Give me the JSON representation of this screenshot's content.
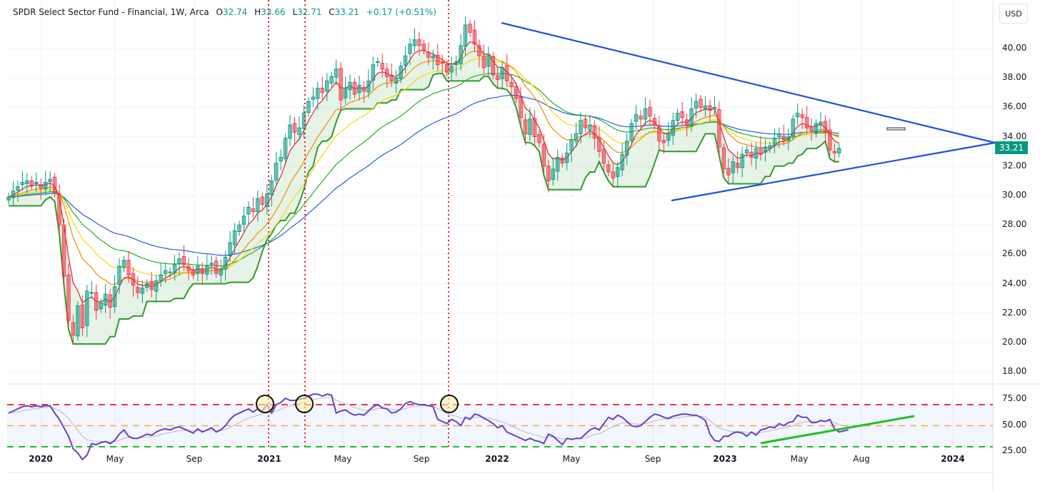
{
  "header": {
    "title": "SPDR Select Sector Fund - Financial, 1W, Arca",
    "open_label": "O",
    "open": "32.74",
    "high_label": "H",
    "high": "33.66",
    "low_label": "L",
    "low": "32.71",
    "close_label": "C",
    "close": "33.21",
    "change": "+0.17 (+0.51%)"
  },
  "currency_button": "USD",
  "last_price_tag": "33.21",
  "colors": {
    "up": "#089981",
    "down": "#f23645",
    "trendline": "#1e4fe0",
    "ema_red": "#e0202a",
    "ema_orange": "#f08c00",
    "ema_yellow": "#f5d90a",
    "ema_green": "#22b022",
    "ema_blue": "#2b59e8",
    "stop_green": "#2e9b2e",
    "stop_red": "#f0202a",
    "rsi": "#6a3fc1",
    "rsi_ma": "#b8b8c4",
    "rsi_upper": "#f23645",
    "rsi_mid": "#f5a442",
    "rsi_lower": "#1fbf1f",
    "event_line": "#f0202a"
  },
  "chart_data": [
    {
      "type": "candlestick",
      "title": "SPDR Select Sector Fund - Financial (XLF), 1W, Arca",
      "ylabel": "USD",
      "ylim": [
        17.0,
        42.0
      ],
      "y_ticks": [
        "40.00",
        "38.00",
        "36.00",
        "34.00",
        "32.00",
        "30.00",
        "28.00",
        "26.00",
        "24.00",
        "22.00",
        "20.00",
        "18.00"
      ],
      "x_ticks": [
        "2020",
        "May",
        "Sep",
        "2021",
        "May",
        "Sep",
        "2022",
        "May",
        "Sep",
        "2023",
        "May",
        "Aug",
        "2024"
      ],
      "last_close": 33.21,
      "weekly_close_approx": [
        29.9,
        30.3,
        30.6,
        30.9,
        31.0,
        30.7,
        30.9,
        30.5,
        30.9,
        31.1,
        30.2,
        28.0,
        24.5,
        21.5,
        20.5,
        22.5,
        21.0,
        23.5,
        23.4,
        22.2,
        22.7,
        23.3,
        22.4,
        23.8,
        25.2,
        25.6,
        24.6,
        23.9,
        23.4,
        23.7,
        24.0,
        23.6,
        24.2,
        24.6,
        24.9,
        24.8,
        25.3,
        25.7,
        25.3,
        24.9,
        24.6,
        25.2,
        24.7,
        25.2,
        25.4,
        24.7,
        25.0,
        25.8,
        26.8,
        27.6,
        28.0,
        28.6,
        29.2,
        28.9,
        29.8,
        29.4,
        30.1,
        31.0,
        32.2,
        32.6,
        33.9,
        34.8,
        34.3,
        34.6,
        35.6,
        36.4,
        36.7,
        37.3,
        37.0,
        37.8,
        38.1,
        38.6,
        36.5,
        37.3,
        37.7,
        36.9,
        37.5,
        37.1,
        37.8,
        38.9,
        39.1,
        38.6,
        38.1,
        37.8,
        38.0,
        38.8,
        39.5,
        40.3,
        40.6,
        40.2,
        39.9,
        39.4,
        39.5,
        38.9,
        39.0,
        38.4,
        38.8,
        39.1,
        40.2,
        41.6,
        41.1,
        40.3,
        39.5,
        38.7,
        39.6,
        38.2,
        37.9,
        38.7,
        37.8,
        37.4,
        36.6,
        35.3,
        34.2,
        35.2,
        34.0,
        33.6,
        32.0,
        31.0,
        31.8,
        32.6,
        32.2,
        32.9,
        33.8,
        34.2,
        35.1,
        34.6,
        34.8,
        33.9,
        33.0,
        32.2,
        31.6,
        31.2,
        31.9,
        32.8,
        33.7,
        34.9,
        35.5,
        35.2,
        35.9,
        35.4,
        34.8,
        33.7,
        33.6,
        34.2,
        35.1,
        35.6,
        35.3,
        34.8,
        35.9,
        36.4,
        36.0,
        36.1,
        35.8,
        36.0,
        33.3,
        31.8,
        31.4,
        32.3,
        31.9,
        32.8,
        33.1,
        32.6,
        33.2,
        32.8,
        33.3,
        33.4,
        33.9,
        34.2,
        33.8,
        34.0,
        35.2,
        35.6,
        35.3,
        34.6,
        34.4,
        34.9,
        35.0,
        34.3,
        33.1,
        32.9,
        33.21
      ],
      "start_x": 12,
      "bar_spacing": 6.46,
      "overlays": [
        {
          "name": "EMA fast (red)",
          "color": "#e0202a"
        },
        {
          "name": "EMA (orange)",
          "color": "#f08c00"
        },
        {
          "name": "EMA (yellow)",
          "color": "#f5d90a"
        },
        {
          "name": "EMA (green)",
          "color": "#22b022"
        },
        {
          "name": "EMA slow (blue)",
          "color": "#2b59e8"
        },
        {
          "name": "Trailing stop / channel",
          "colors": [
            "#2e9b2e",
            "#f0202a"
          ]
        }
      ],
      "annotations": [
        {
          "type": "trendline",
          "label": "descending resistance",
          "from": [
            702,
            32
          ],
          "to": [
            1393,
            200
          ]
        },
        {
          "type": "trendline",
          "label": "ascending support",
          "from": [
            940,
            281
          ],
          "to": [
            1393,
            200
          ]
        },
        {
          "type": "vertical_dotted",
          "x": 376
        },
        {
          "type": "vertical_dotted",
          "x": 427
        },
        {
          "type": "vertical_dotted",
          "x": 628
        }
      ]
    },
    {
      "type": "line",
      "title": "RSI",
      "ylim": [
        10,
        90
      ],
      "y_ticks": [
        "75.00",
        "50.00",
        "25.00"
      ],
      "levels": {
        "upper": 70,
        "middle": 50,
        "lower": 30
      },
      "rsi_approx": [
        62,
        64,
        66,
        68,
        69,
        68,
        69,
        68,
        69,
        69,
        62,
        56,
        48,
        40,
        28,
        24,
        18,
        22,
        33,
        32,
        34,
        35,
        33,
        36,
        42,
        46,
        40,
        38,
        38,
        40,
        42,
        41,
        44,
        46,
        47,
        46,
        48,
        49,
        47,
        45,
        43,
        47,
        44,
        46,
        48,
        44,
        46,
        50,
        56,
        60,
        62,
        64,
        66,
        63,
        66,
        64,
        70,
        62,
        70,
        72,
        76,
        74,
        74,
        75,
        76,
        78,
        80,
        80,
        78,
        80,
        79,
        62,
        64,
        65,
        62,
        60,
        61,
        60,
        64,
        68,
        70,
        67,
        66,
        62,
        63,
        66,
        71,
        73,
        71,
        70,
        70,
        69,
        68,
        56,
        54,
        52,
        56,
        54,
        50,
        58,
        56,
        61,
        60,
        57,
        55,
        52,
        48,
        50,
        44,
        42,
        40,
        38,
        36,
        38,
        36,
        35,
        33,
        42,
        40,
        36,
        32,
        38,
        37,
        38,
        38,
        42,
        46,
        48,
        46,
        52,
        58,
        56,
        60,
        58,
        54,
        50,
        49,
        50,
        54,
        58,
        61,
        60,
        58,
        57,
        59,
        60,
        61,
        61,
        60,
        60,
        58,
        55,
        42,
        36,
        35,
        40,
        40,
        43,
        44,
        43,
        40,
        44,
        41,
        46,
        47,
        49,
        48,
        52,
        50,
        53,
        54,
        60,
        58,
        58,
        53,
        53,
        55,
        54,
        56,
        47,
        44,
        45,
        46
      ],
      "circles": [
        {
          "x": 371,
          "y": 566
        },
        {
          "x": 426,
          "y": 566
        },
        {
          "x": 629,
          "y": 566
        }
      ],
      "trendline": {
        "from": [
          1065,
          621
        ],
        "to": [
          1280,
          583
        ],
        "color": "#1fbf1f"
      }
    }
  ]
}
